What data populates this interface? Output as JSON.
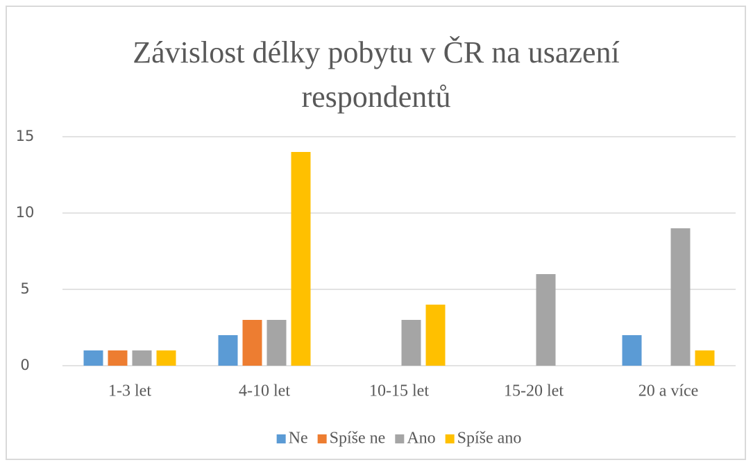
{
  "chart_data": {
    "type": "bar",
    "title": "Závislost délky pobytu v ČR na usazení respondentů",
    "categories": [
      "1-3 let",
      "4-10 let",
      "10-15 let",
      "15-20 let",
      "20 a více"
    ],
    "series": [
      {
        "name": "Ne",
        "color": "#5b9bd5",
        "values": [
          1,
          2,
          0,
          0,
          2
        ]
      },
      {
        "name": "Spíše ne",
        "color": "#ed7d31",
        "values": [
          1,
          3,
          0,
          0,
          0
        ]
      },
      {
        "name": "Ano",
        "color": "#a5a5a5",
        "values": [
          1,
          3,
          3,
          6,
          9
        ]
      },
      {
        "name": "Spíše ano",
        "color": "#ffc000",
        "values": [
          1,
          14,
          4,
          0,
          1
        ]
      }
    ],
    "ylim": [
      0,
      15
    ],
    "yticks": [
      0,
      5,
      10,
      15
    ],
    "grid": true,
    "legend": "bottom"
  }
}
